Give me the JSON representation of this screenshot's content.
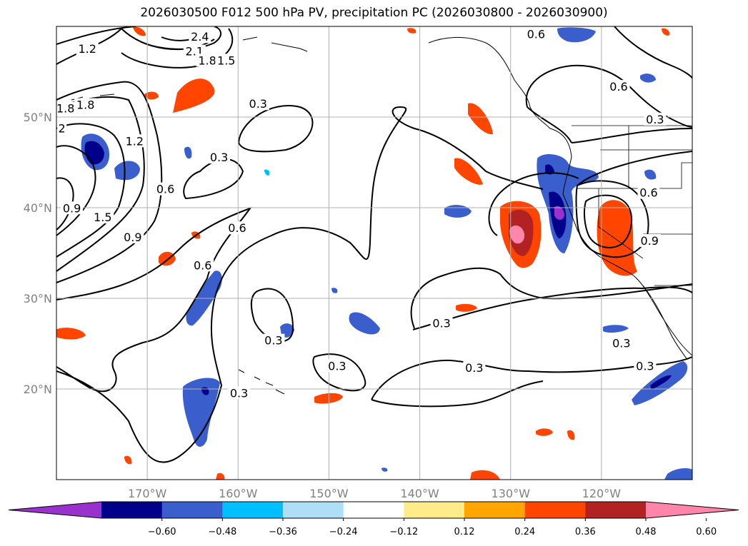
{
  "title": "2026030500 F012 500 hPa PV, precipitation PC (2026030800 - 2026030900)",
  "map": {
    "lon_range": [
      -180,
      -110
    ],
    "lat_range": [
      10,
      60
    ],
    "lon_ticks": [
      {
        "lon": -170,
        "label": "170°W"
      },
      {
        "lon": -160,
        "label": "160°W"
      },
      {
        "lon": -150,
        "label": "150°W"
      },
      {
        "lon": -140,
        "label": "140°W"
      },
      {
        "lon": -130,
        "label": "130°W"
      },
      {
        "lon": -120,
        "label": "120°W"
      }
    ],
    "lat_ticks": [
      {
        "lat": 20,
        "label": "20°N"
      },
      {
        "lat": 30,
        "label": "30°N"
      },
      {
        "lat": 40,
        "label": "40°N"
      },
      {
        "lat": 50,
        "label": "50°N"
      }
    ],
    "grid": true
  },
  "pv_contour_labels": [
    {
      "text": "2.4",
      "lon": -164.2,
      "lat": 58.8
    },
    {
      "text": "2.1",
      "lon": -164.8,
      "lat": 57.2
    },
    {
      "text": "1.8",
      "lon": -163.4,
      "lat": 56.2
    },
    {
      "text": "1.5",
      "lon": -161.3,
      "lat": 56.2
    },
    {
      "text": "1.2",
      "lon": -176.6,
      "lat": 57.5
    },
    {
      "text": "1.8",
      "lon": -179.0,
      "lat": 50.9
    },
    {
      "text": "1.8",
      "lon": -176.8,
      "lat": 51.3
    },
    {
      "text": "2",
      "lon": -179.4,
      "lat": 48.7
    },
    {
      "text": "1.2",
      "lon": -171.4,
      "lat": 47.3
    },
    {
      "text": "0.9",
      "lon": -178.3,
      "lat": 39.9
    },
    {
      "text": "1.5",
      "lon": -174.9,
      "lat": 38.9
    },
    {
      "text": "0.9",
      "lon": -171.6,
      "lat": 36.7
    },
    {
      "text": "0.6",
      "lon": -168.0,
      "lat": 42.0
    },
    {
      "text": "0.6",
      "lon": -160.1,
      "lat": 37.7
    },
    {
      "text": "0.6",
      "lon": -163.9,
      "lat": 33.6
    },
    {
      "text": "0.3",
      "lon": -162.1,
      "lat": 45.5
    },
    {
      "text": "0.3",
      "lon": -157.8,
      "lat": 51.4
    },
    {
      "text": "0.3",
      "lon": -156.1,
      "lat": 25.3
    },
    {
      "text": "0.3",
      "lon": -159.9,
      "lat": 19.5
    },
    {
      "text": "0.3",
      "lon": -149.1,
      "lat": 22.5
    },
    {
      "text": "0.3",
      "lon": -137.6,
      "lat": 27.2
    },
    {
      "text": "0.3",
      "lon": -134.0,
      "lat": 22.3
    },
    {
      "text": "0.6",
      "lon": -127.2,
      "lat": 59.1
    },
    {
      "text": "0.6",
      "lon": -118.1,
      "lat": 53.3
    },
    {
      "text": "0.3",
      "lon": -114.1,
      "lat": 49.7
    },
    {
      "text": "0.6",
      "lon": -114.8,
      "lat": 41.6
    },
    {
      "text": "0.9",
      "lon": -114.7,
      "lat": 36.3
    },
    {
      "text": "0.3",
      "lon": -117.8,
      "lat": 25.0
    },
    {
      "text": "0.3",
      "lon": -115.2,
      "lat": 22.5
    }
  ],
  "colorbar": {
    "colors": [
      "#9932CC",
      "#00008B",
      "#3A5FCD",
      "#00BFFF",
      "#AEDFF7",
      "#FFFFFF",
      "#FFEB8A",
      "#FFA500",
      "#FF4500",
      "#B22222",
      "#FF85AA"
    ],
    "tick_labels": [
      "−0.60",
      "−0.48",
      "−0.36",
      "−0.24",
      "−0.12",
      "0.12",
      "0.24",
      "0.36",
      "0.48",
      "0.60"
    ]
  }
}
